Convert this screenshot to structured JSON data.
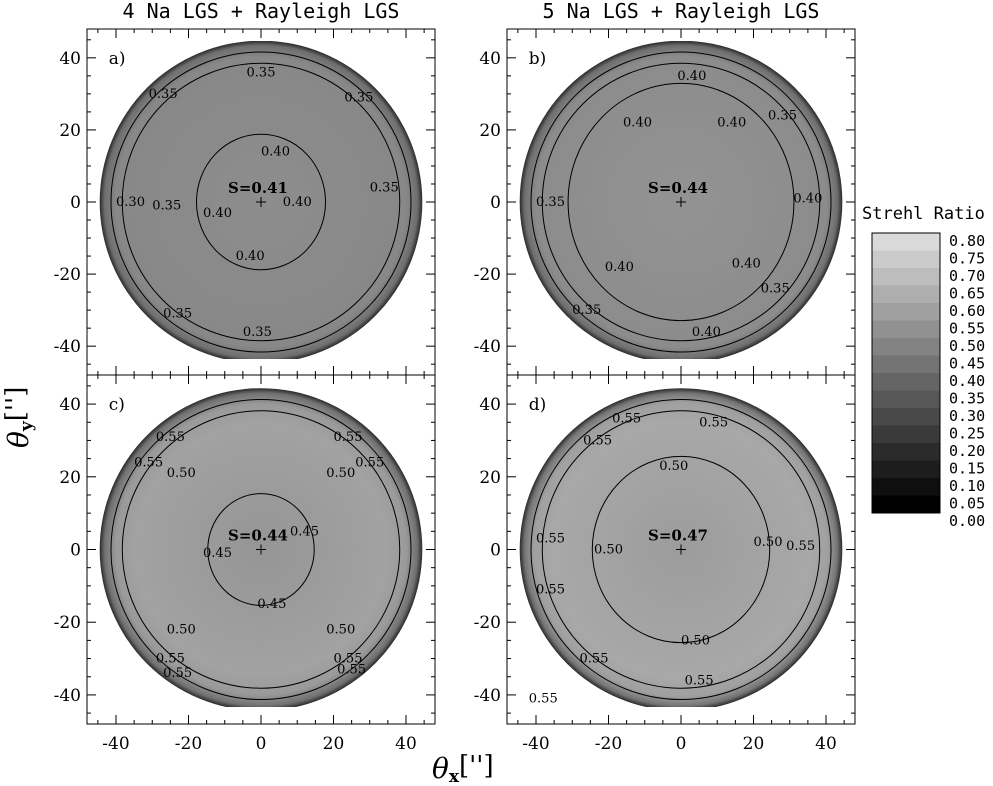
{
  "chart_data": {
    "type": "heatmap",
    "column_titles": [
      "4 Na LGS + Rayleigh LGS",
      "5 Na LGS + Rayleigh LGS"
    ],
    "xlabel": "θ",
    "xlabel_sub": "x",
    "ylabel": "θ",
    "ylabel_sub": "y",
    "unit": "['']",
    "xlim": [
      -48,
      48
    ],
    "ylim": [
      -48,
      48
    ],
    "ticks": [
      -40,
      -20,
      0,
      20,
      40
    ],
    "colorbar": {
      "title": "Strehl Ratio",
      "levels": [
        "0.80",
        "0.75",
        "0.70",
        "0.65",
        "0.60",
        "0.55",
        "0.50",
        "0.45",
        "0.40",
        "0.35",
        "0.30",
        "0.25",
        "0.20",
        "0.15",
        "0.10",
        "0.05",
        "0.00"
      ]
    },
    "panels": [
      {
        "letter": "a)",
        "center_label": "S=0.41",
        "center_value": 0.41,
        "contours": [
          {
            "text": "0.35",
            "x": 0,
            "y": 36
          },
          {
            "text": "0.35",
            "x": -27,
            "y": 30
          },
          {
            "text": "0.35",
            "x": 27,
            "y": 29
          },
          {
            "text": "0.40",
            "x": 4,
            "y": 14
          },
          {
            "text": "0.30",
            "x": -36,
            "y": 0
          },
          {
            "text": "0.35",
            "x": -26,
            "y": -1
          },
          {
            "text": "0.40",
            "x": -12,
            "y": -3
          },
          {
            "text": "0.40",
            "x": 10,
            "y": 0
          },
          {
            "text": "0.35",
            "x": 34,
            "y": 4
          },
          {
            "text": "0.40",
            "x": -3,
            "y": -15
          },
          {
            "text": "0.35",
            "x": -23,
            "y": -31
          },
          {
            "text": "0.35",
            "x": -1,
            "y": -36
          }
        ]
      },
      {
        "letter": "b)",
        "center_label": "S=0.44",
        "center_value": 0.44,
        "contours": [
          {
            "text": "0.40",
            "x": 3,
            "y": 35
          },
          {
            "text": "0.40",
            "x": -12,
            "y": 22
          },
          {
            "text": "0.40",
            "x": 14,
            "y": 22
          },
          {
            "text": "0.35",
            "x": 28,
            "y": 24
          },
          {
            "text": "0.35",
            "x": -36,
            "y": 0
          },
          {
            "text": "0.40",
            "x": 35,
            "y": 1
          },
          {
            "text": "0.40",
            "x": -17,
            "y": -18
          },
          {
            "text": "0.40",
            "x": 18,
            "y": -17
          },
          {
            "text": "0.35",
            "x": 26,
            "y": -24
          },
          {
            "text": "0.35",
            "x": -26,
            "y": -30
          },
          {
            "text": "0.40",
            "x": 7,
            "y": -36
          }
        ]
      },
      {
        "letter": "c)",
        "center_label": "S=0.44",
        "center_value": 0.44,
        "contours": [
          {
            "text": "0.55",
            "x": -25,
            "y": 31
          },
          {
            "text": "0.55",
            "x": -31,
            "y": 24
          },
          {
            "text": "0.55",
            "x": 24,
            "y": 31
          },
          {
            "text": "0.55",
            "x": 30,
            "y": 24
          },
          {
            "text": "0.50",
            "x": -22,
            "y": 21
          },
          {
            "text": "0.50",
            "x": 22,
            "y": 21
          },
          {
            "text": "0.45",
            "x": 12,
            "y": 5
          },
          {
            "text": "0.45",
            "x": -12,
            "y": -1
          },
          {
            "text": "0.45",
            "x": 3,
            "y": -15
          },
          {
            "text": "0.50",
            "x": -22,
            "y": -22
          },
          {
            "text": "0.50",
            "x": 22,
            "y": -22
          },
          {
            "text": "0.55",
            "x": -25,
            "y": -30
          },
          {
            "text": "0.55",
            "x": -23,
            "y": -34
          },
          {
            "text": "0.55",
            "x": 24,
            "y": -30
          },
          {
            "text": "0.55",
            "x": 25,
            "y": -33
          }
        ]
      },
      {
        "letter": "d)",
        "center_label": "S=0.47",
        "center_value": 0.47,
        "contours": [
          {
            "text": "0.55",
            "x": -15,
            "y": 36
          },
          {
            "text": "0.55",
            "x": 9,
            "y": 35
          },
          {
            "text": "0.55",
            "x": -23,
            "y": 30
          },
          {
            "text": "0.50",
            "x": -2,
            "y": 23
          },
          {
            "text": "0.55",
            "x": -36,
            "y": 3
          },
          {
            "text": "0.50",
            "x": -20,
            "y": 0
          },
          {
            "text": "0.50",
            "x": 24,
            "y": 2
          },
          {
            "text": "0.55",
            "x": 33,
            "y": 1
          },
          {
            "text": "0.55",
            "x": -36,
            "y": -11
          },
          {
            "text": "0.50",
            "x": 4,
            "y": -25
          },
          {
            "text": "0.55",
            "x": -24,
            "y": -30
          },
          {
            "text": "0.55",
            "x": 5,
            "y": -36
          },
          {
            "text": "0.55",
            "x": -38,
            "y": -41
          }
        ]
      }
    ]
  }
}
